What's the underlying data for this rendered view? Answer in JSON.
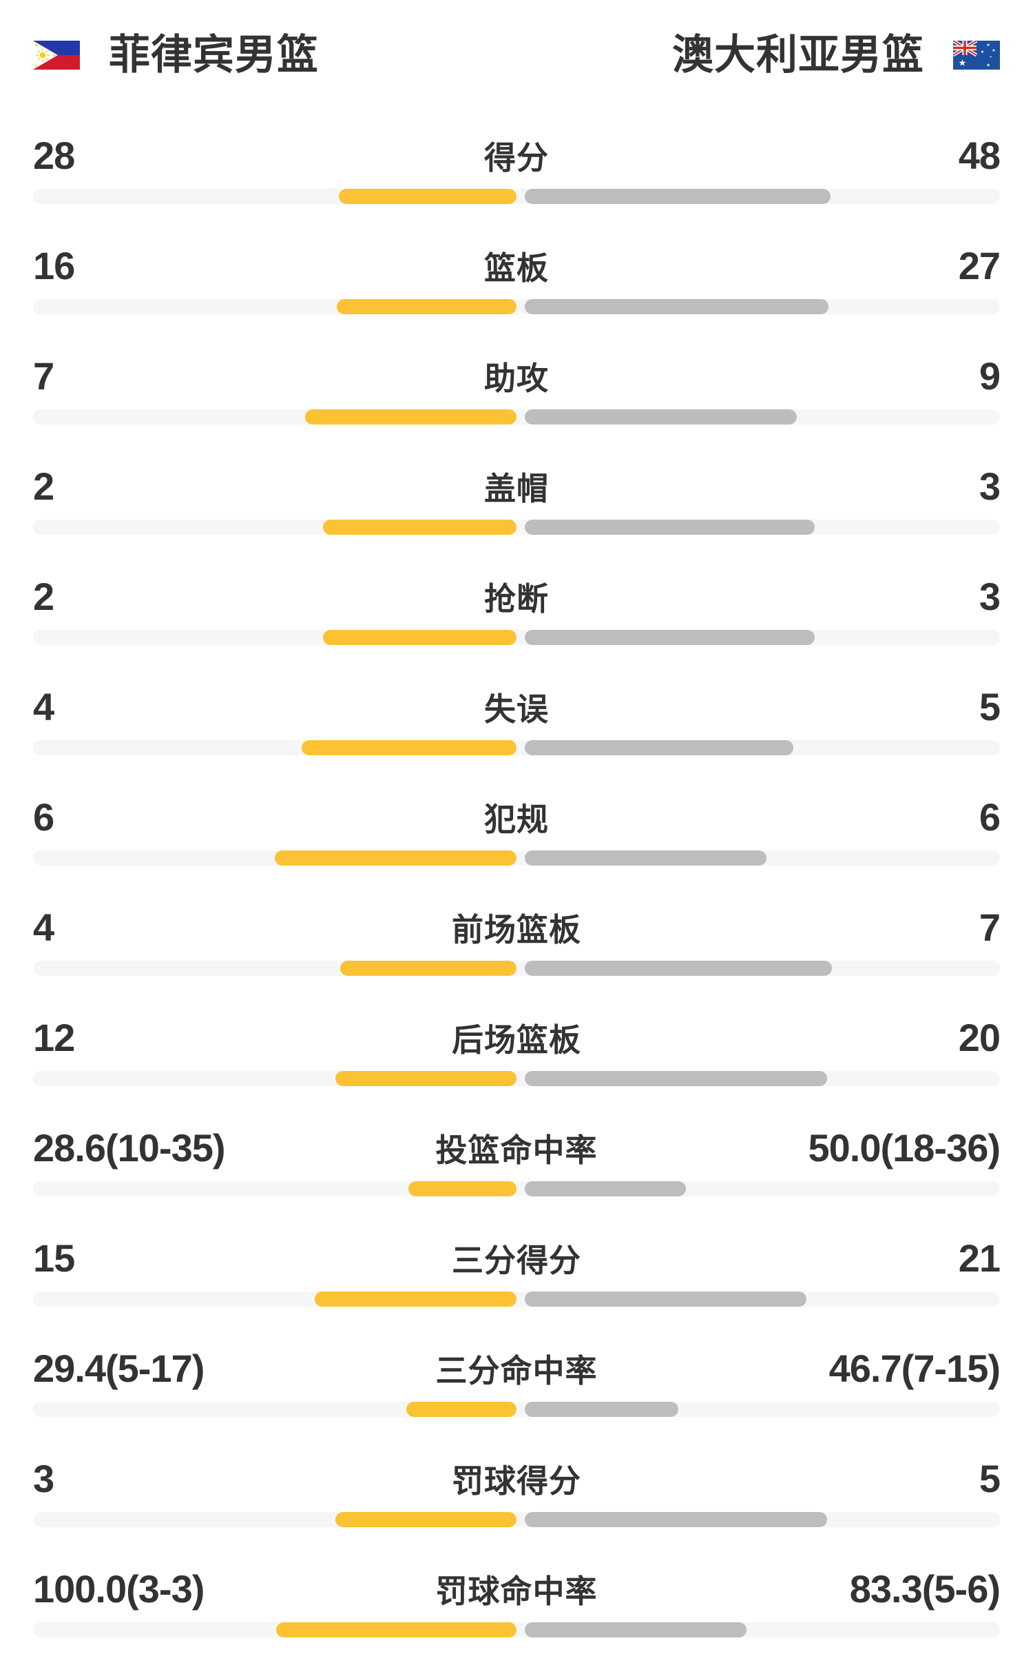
{
  "header": {
    "left_team": "菲律宾男篮",
    "right_team": "澳大利亚男篮",
    "left_flag": "philippines-flag",
    "right_flag": "australia-flag"
  },
  "colors": {
    "left_bar": "#FBC233",
    "right_bar": "#BDBDBD",
    "track": "#F5F6F8",
    "text": "#333333"
  },
  "chart_data": {
    "type": "bar",
    "orientation": "horizontal-paired-comparison",
    "teams": [
      "菲律宾男篮",
      "澳大利亚男篮"
    ],
    "legend_position": "top",
    "grid": false,
    "bar_note": "left_pct / right_pct = bar length as percent of each half-track",
    "rows": [
      {
        "label": "得分",
        "left": "28",
        "right": "48",
        "left_val": 28,
        "right_val": 48,
        "left_pct": 36.8,
        "right_pct": 63.2
      },
      {
        "label": "篮板",
        "left": "16",
        "right": "27",
        "left_val": 16,
        "right_val": 27,
        "left_pct": 37.2,
        "right_pct": 62.8
      },
      {
        "label": "助攻",
        "left": "7",
        "right": "9",
        "left_val": 7,
        "right_val": 9,
        "left_pct": 43.8,
        "right_pct": 56.2
      },
      {
        "label": "盖帽",
        "left": "2",
        "right": "3",
        "left_val": 2,
        "right_val": 3,
        "left_pct": 40.0,
        "right_pct": 60.0
      },
      {
        "label": "抢断",
        "left": "2",
        "right": "3",
        "left_val": 2,
        "right_val": 3,
        "left_pct": 40.0,
        "right_pct": 60.0
      },
      {
        "label": "失误",
        "left": "4",
        "right": "5",
        "left_val": 4,
        "right_val": 5,
        "left_pct": 44.4,
        "right_pct": 55.6
      },
      {
        "label": "犯规",
        "left": "6",
        "right": "6",
        "left_val": 6,
        "right_val": 6,
        "left_pct": 50.0,
        "right_pct": 50.0
      },
      {
        "label": "前场篮板",
        "left": "4",
        "right": "7",
        "left_val": 4,
        "right_val": 7,
        "left_pct": 36.4,
        "right_pct": 63.6
      },
      {
        "label": "后场篮板",
        "left": "12",
        "right": "20",
        "left_val": 12,
        "right_val": 20,
        "left_pct": 37.5,
        "right_pct": 62.5
      },
      {
        "label": "投篮命中率",
        "left": "28.6(10-35)",
        "right": "50.0(18-36)",
        "left_val": 28.6,
        "right_val": 50.0,
        "left_pct": 22.4,
        "right_pct": 33.3
      },
      {
        "label": "三分得分",
        "left": "15",
        "right": "21",
        "left_val": 15,
        "right_val": 21,
        "left_pct": 41.7,
        "right_pct": 58.3
      },
      {
        "label": "三分命中率",
        "left": "29.4(5-17)",
        "right": "46.7(7-15)",
        "left_val": 29.4,
        "right_val": 46.7,
        "left_pct": 22.8,
        "right_pct": 31.8
      },
      {
        "label": "罚球得分",
        "left": "3",
        "right": "5",
        "left_val": 3,
        "right_val": 5,
        "left_pct": 37.5,
        "right_pct": 62.5
      },
      {
        "label": "罚球命中率",
        "left": "100.0(3-3)",
        "right": "83.3(5-6)",
        "left_val": 100.0,
        "right_val": 83.3,
        "left_pct": 49.7,
        "right_pct": 45.9
      }
    ]
  }
}
